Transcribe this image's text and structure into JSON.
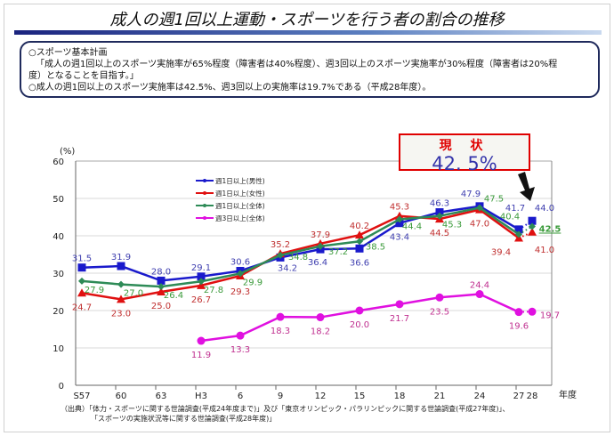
{
  "title": "成人の週1回以上運動・スポーツを行う者の割合の推移",
  "info": {
    "line1": "○スポーツ基本計画",
    "line2": "「成人の週1回以上のスポーツ実施率が65%程度（障害者は40%程度）、週3回以上のスポーツ実施率が30%程度（障害者は20%程",
    "line3": "度）となることを目指す。」",
    "line4": "○成人の週1回以上のスポーツ実施率は42.5%、週3回以上の実施率は19.7%である（平成28年度）。"
  },
  "callout": {
    "heading": "現 状",
    "value": "42. 5%"
  },
  "source": {
    "line1": "（出典）「体力・スポーツに関する世論調査(平成24年度まで)」及び「東京オリンピック・パラリンピックに関する世論調査(平成27年度)」、",
    "line2": "「スポーツの実施状況等に関する世論調査(平成28年度)」"
  },
  "chart_data": {
    "type": "line",
    "ylabel": "(%)",
    "xlabel": "年度",
    "ylim": [
      0,
      60
    ],
    "yticks": [
      0,
      10,
      20,
      30,
      40,
      50,
      60
    ],
    "grid": true,
    "legend_position": "top-left",
    "categories": [
      "S57",
      "60",
      "63",
      "H3",
      "6",
      "9",
      "12",
      "15",
      "18",
      "21",
      "24",
      "27",
      "28"
    ],
    "series": [
      {
        "name": "週1日以上(男性)",
        "color": "#1a1acc",
        "marker": "square",
        "label_color": "#4040b0",
        "values": [
          31.5,
          31.9,
          28.0,
          29.1,
          30.6,
          34.2,
          36.4,
          36.6,
          43.4,
          46.3,
          47.9,
          41.7,
          44.0
        ]
      },
      {
        "name": "週1日以上(女性)",
        "color": "#e01010",
        "marker": "triangle",
        "label_color": "#c03030",
        "values": [
          24.7,
          23.0,
          25.0,
          26.7,
          29.3,
          35.2,
          37.9,
          40.2,
          45.3,
          44.5,
          47.0,
          39.4,
          41.0
        ]
      },
      {
        "name": "週1日以上(全体)",
        "color": "#2e8b57",
        "marker": "diamond",
        "label_color": "#3a9a3a",
        "values": [
          27.9,
          27.0,
          26.4,
          27.8,
          29.9,
          34.8,
          37.2,
          38.5,
          44.4,
          45.3,
          47.5,
          40.4,
          42.5
        ]
      },
      {
        "name": "週3日以上(全体)",
        "color": "#e010e0",
        "marker": "circle",
        "label_color": "#c03090",
        "values": [
          null,
          null,
          null,
          11.9,
          13.3,
          18.3,
          18.2,
          20.0,
          21.7,
          23.5,
          24.4,
          19.6,
          19.7
        ]
      }
    ],
    "dotted_last_segment": true
  }
}
